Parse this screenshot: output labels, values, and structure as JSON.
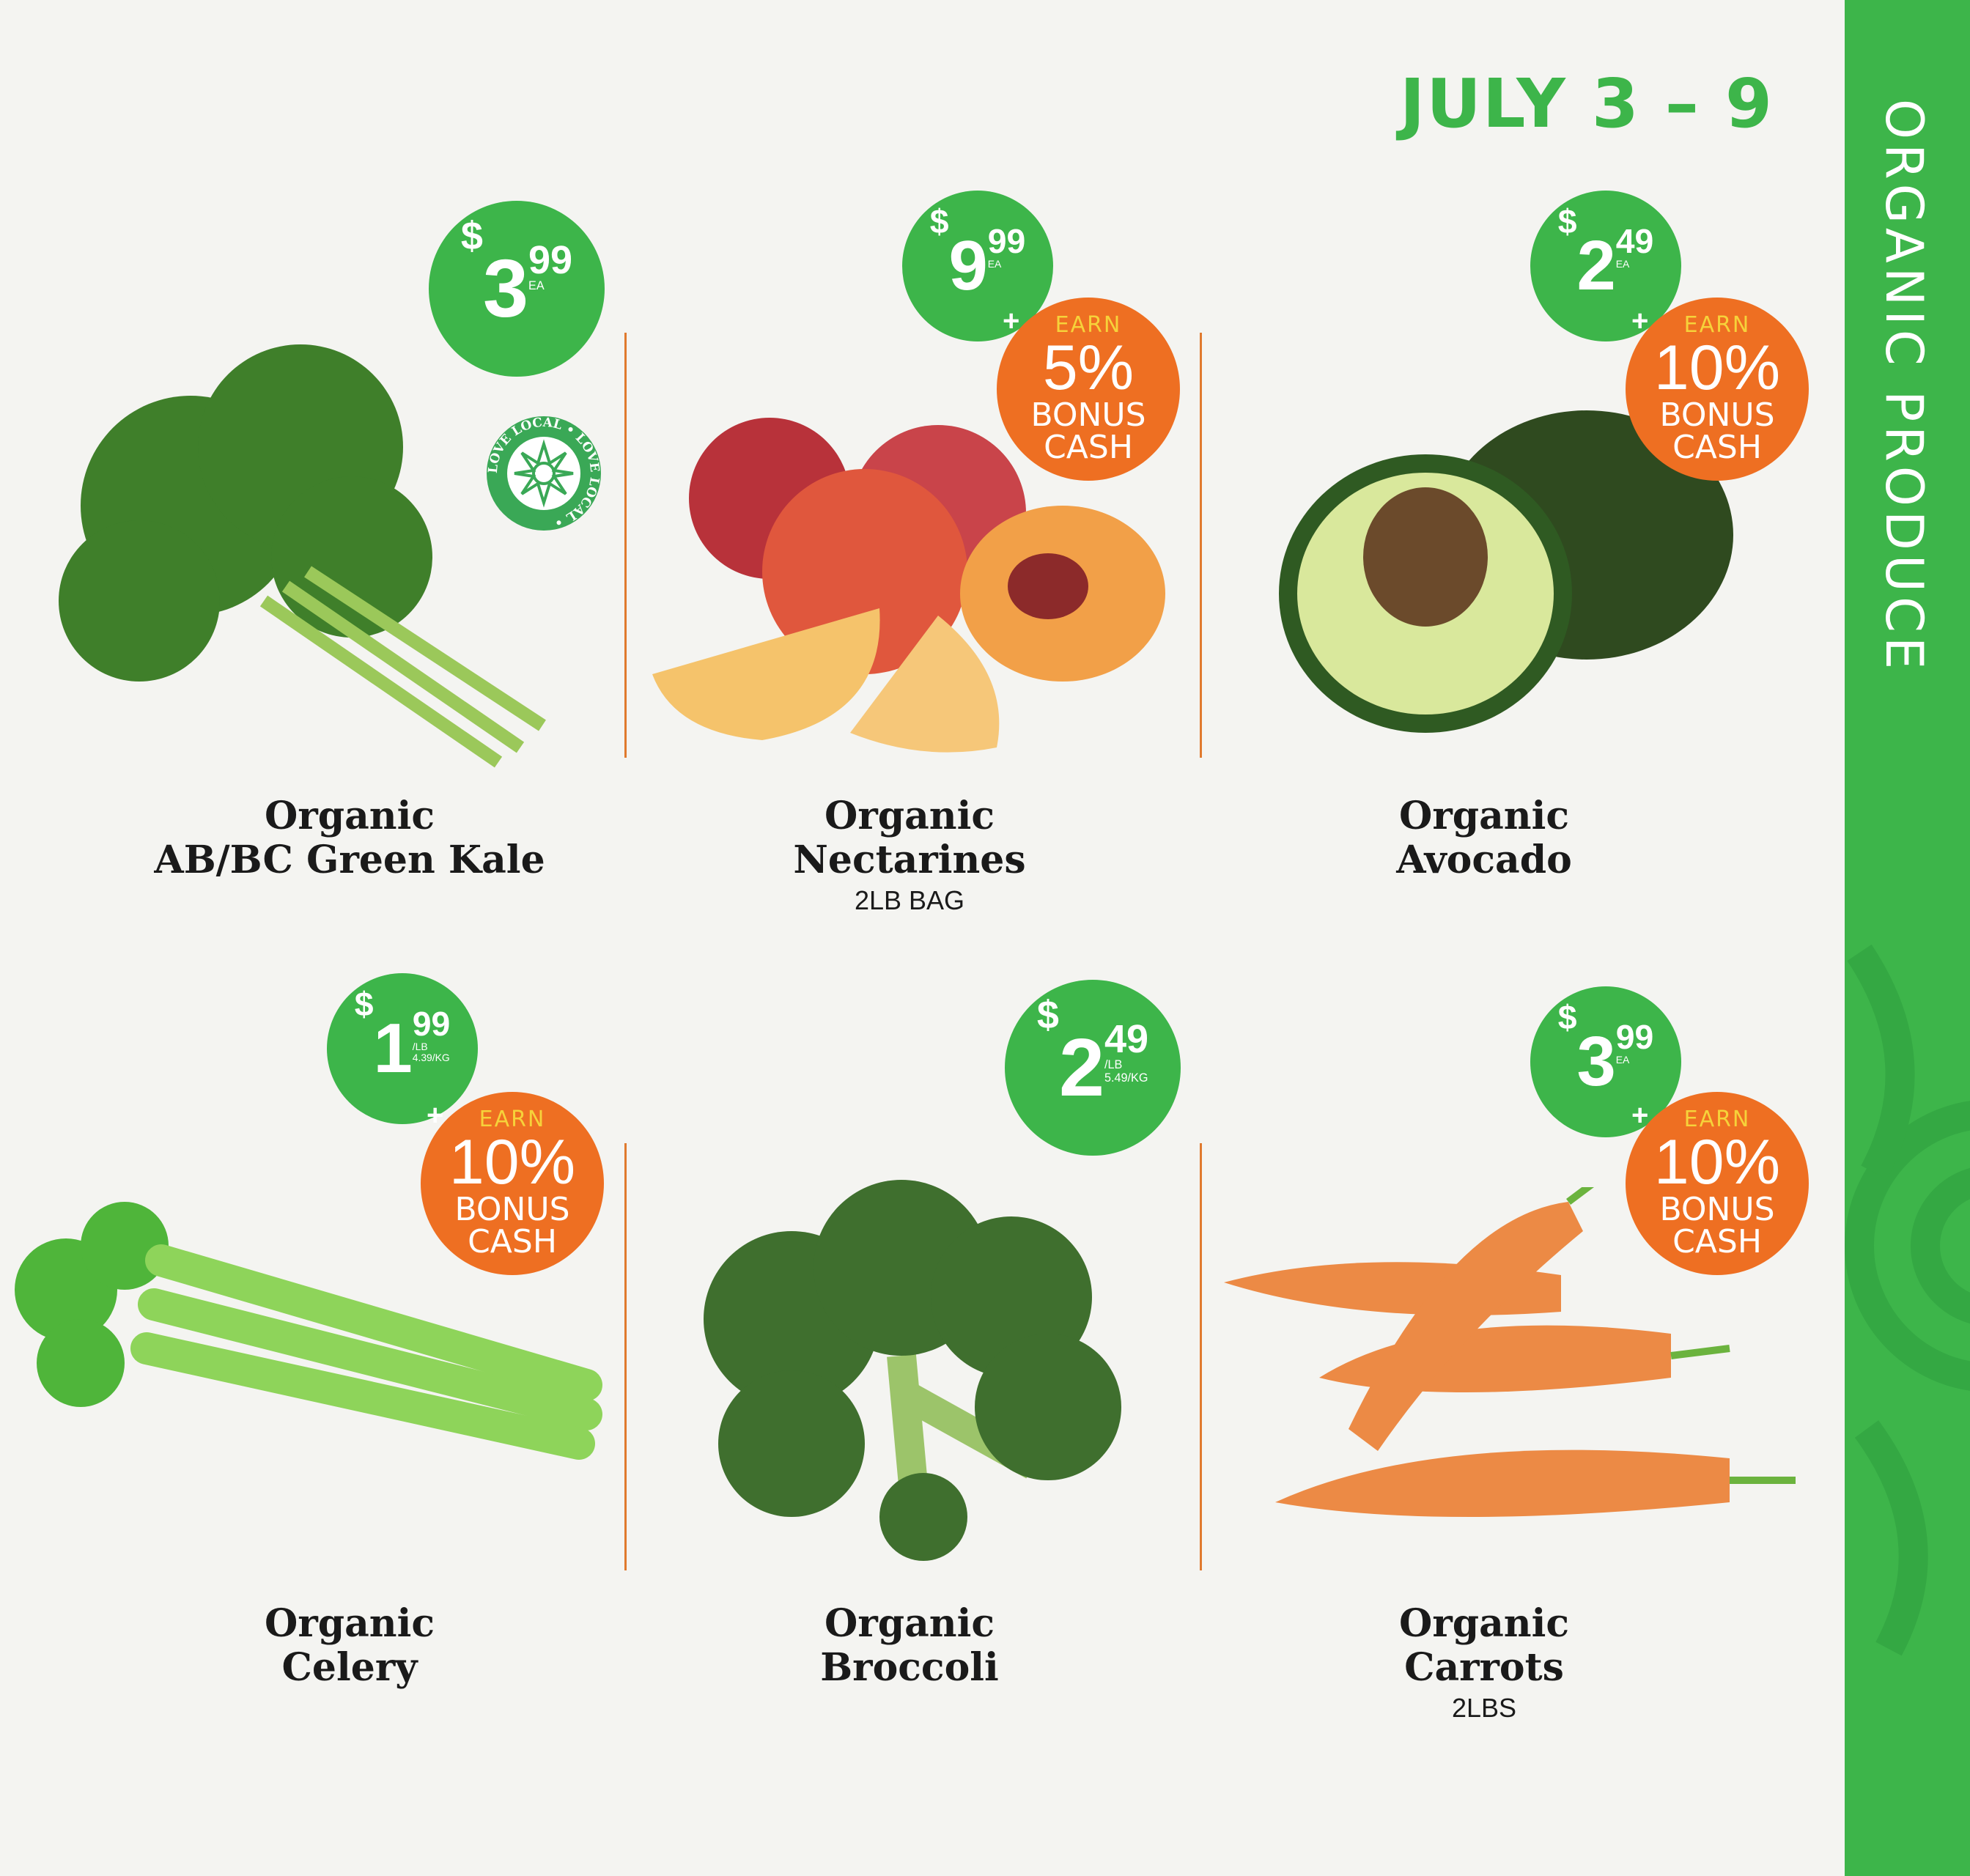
{
  "header": {
    "date": "JULY 3 – 9",
    "section": "ORGANIC PRODUCE"
  },
  "stamp": {
    "text": "LOVE LOCAL • LOVE LOCAL •"
  },
  "colors": {
    "green": "#3db54a",
    "orange": "#ee6f22",
    "earn_yellow": "#f6d23a"
  },
  "products": [
    {
      "line1": "Organic",
      "line2": "AB/BC Green Kale",
      "sub": "",
      "dollars": "3",
      "cents": "99",
      "unit": "EA",
      "unit2": "",
      "bonus": null
    },
    {
      "line1": "Organic",
      "line2": "Nectarines",
      "sub": "2LB BAG",
      "dollars": "9",
      "cents": "99",
      "unit": "EA",
      "unit2": "",
      "bonus": {
        "earn": "EARN",
        "pct": "5%",
        "l1": "BONUS",
        "l2": "CASH"
      }
    },
    {
      "line1": "Organic",
      "line2": "Avocado",
      "sub": "",
      "dollars": "2",
      "cents": "49",
      "unit": "EA",
      "unit2": "",
      "bonus": {
        "earn": "EARN",
        "pct": "10%",
        "l1": "BONUS",
        "l2": "CASH"
      }
    },
    {
      "line1": "Organic",
      "line2": "Celery",
      "sub": "",
      "dollars": "1",
      "cents": "99",
      "unit": "/LB",
      "unit2": "4.39/KG",
      "bonus": {
        "earn": "EARN",
        "pct": "10%",
        "l1": "BONUS",
        "l2": "CASH"
      }
    },
    {
      "line1": "Organic",
      "line2": "Broccoli",
      "sub": "",
      "dollars": "2",
      "cents": "49",
      "unit": "/LB",
      "unit2": "5.49/KG",
      "bonus": null
    },
    {
      "line1": "Organic",
      "line2": "Carrots",
      "sub": "2LBS",
      "dollars": "3",
      "cents": "99",
      "unit": "EA",
      "unit2": "",
      "bonus": {
        "earn": "EARN",
        "pct": "10%",
        "l1": "BONUS",
        "l2": "CASH"
      }
    }
  ]
}
